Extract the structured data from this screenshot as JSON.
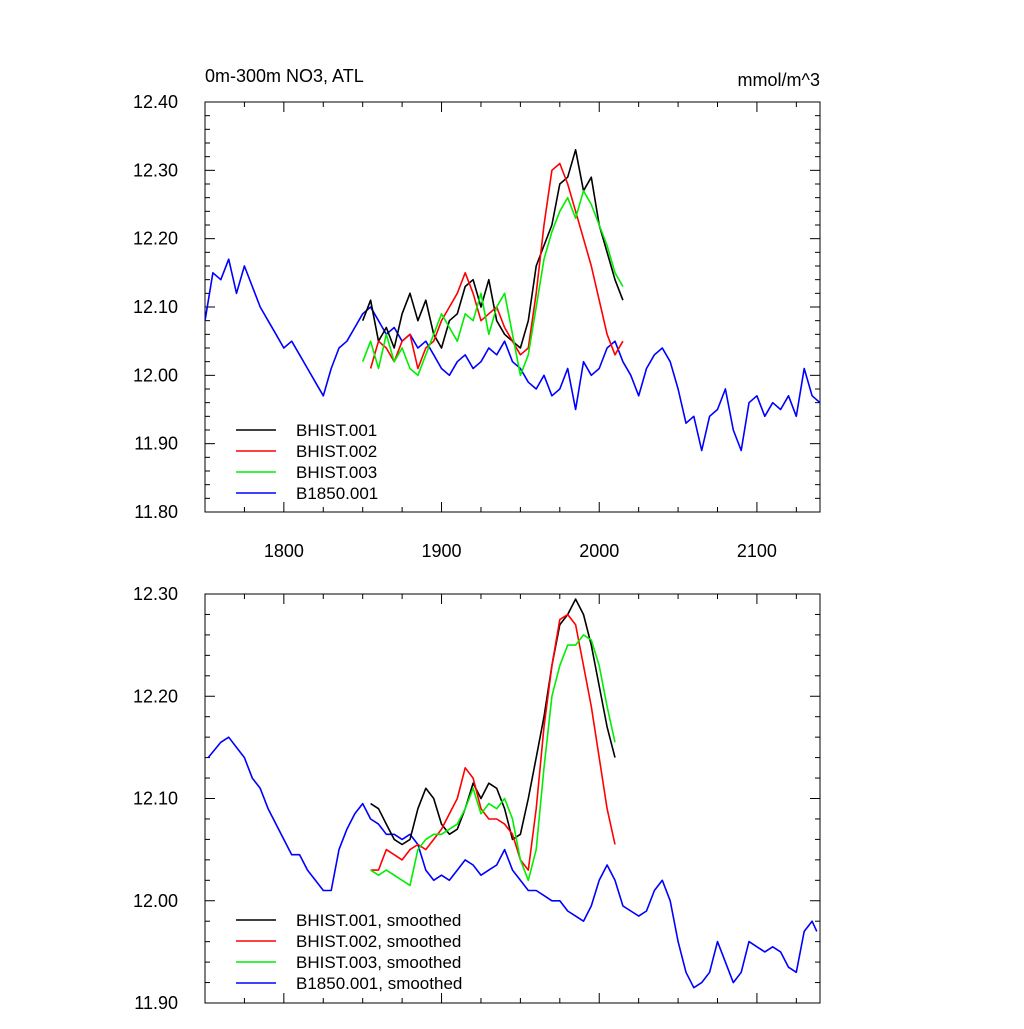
{
  "chart_data": [
    {
      "type": "line",
      "title_left": "0m-300m NO3, ATL",
      "title_right": "mmol/m^3",
      "xlabel": "",
      "ylabel": "",
      "xlim": [
        1750,
        2140
      ],
      "ylim": [
        11.8,
        12.4
      ],
      "x_ticks": [
        1800,
        1900,
        2000,
        2100
      ],
      "x_tick_labels": [
        "1800",
        "1900",
        "2000",
        "2100"
      ],
      "y_ticks": [
        11.8,
        11.9,
        12.0,
        12.1,
        12.2,
        12.3,
        12.4
      ],
      "y_tick_labels": [
        "11.80",
        "11.90",
        "12.00",
        "12.10",
        "12.20",
        "12.30",
        "12.40"
      ],
      "legend_position": "bottom-left",
      "series": [
        {
          "name": "BHIST.001",
          "color": "#000000",
          "x": [
            1850,
            1855,
            1860,
            1865,
            1870,
            1875,
            1880,
            1885,
            1890,
            1895,
            1900,
            1905,
            1910,
            1915,
            1920,
            1925,
            1930,
            1935,
            1940,
            1945,
            1950,
            1955,
            1960,
            1965,
            1970,
            1975,
            1980,
            1985,
            1990,
            1995,
            2000,
            2005,
            2010,
            2015
          ],
          "y": [
            12.08,
            12.11,
            12.05,
            12.07,
            12.04,
            12.09,
            12.12,
            12.08,
            12.11,
            12.06,
            12.04,
            12.08,
            12.09,
            12.13,
            12.14,
            12.1,
            12.14,
            12.08,
            12.06,
            12.05,
            12.04,
            12.08,
            12.16,
            12.19,
            12.22,
            12.28,
            12.29,
            12.33,
            12.27,
            12.29,
            12.22,
            12.18,
            12.14,
            12.11
          ]
        },
        {
          "name": "BHIST.002",
          "color": "#ff0000",
          "x": [
            1855,
            1860,
            1865,
            1870,
            1875,
            1880,
            1885,
            1890,
            1895,
            1900,
            1905,
            1910,
            1915,
            1920,
            1925,
            1930,
            1935,
            1940,
            1945,
            1950,
            1955,
            1960,
            1965,
            1970,
            1975,
            1980,
            1985,
            1990,
            1995,
            2000,
            2005,
            2010,
            2015
          ],
          "y": [
            12.01,
            12.05,
            12.04,
            12.02,
            12.05,
            12.06,
            12.01,
            12.04,
            12.05,
            12.08,
            12.1,
            12.12,
            12.15,
            12.12,
            12.08,
            12.09,
            12.1,
            12.07,
            12.05,
            12.03,
            12.04,
            12.12,
            12.22,
            12.3,
            12.31,
            12.28,
            12.24,
            12.2,
            12.16,
            12.11,
            12.06,
            12.03,
            12.05
          ]
        },
        {
          "name": "BHIST.003",
          "color": "#00ee00",
          "x": [
            1850,
            1855,
            1860,
            1865,
            1870,
            1875,
            1880,
            1885,
            1890,
            1895,
            1900,
            1905,
            1910,
            1915,
            1920,
            1925,
            1930,
            1935,
            1940,
            1945,
            1950,
            1955,
            1960,
            1965,
            1970,
            1975,
            1980,
            1985,
            1990,
            1995,
            2000,
            2005,
            2010,
            2015
          ],
          "y": [
            12.02,
            12.05,
            12.01,
            12.06,
            12.02,
            12.04,
            12.01,
            12.0,
            12.03,
            12.06,
            12.09,
            12.07,
            12.05,
            12.09,
            12.08,
            12.12,
            12.06,
            12.1,
            12.12,
            12.06,
            12.0,
            12.03,
            12.1,
            12.17,
            12.21,
            12.24,
            12.26,
            12.23,
            12.27,
            12.25,
            12.22,
            12.19,
            12.15,
            12.13
          ]
        },
        {
          "name": "B1850.001",
          "color": "#0000ff",
          "x": [
            1750,
            1755,
            1760,
            1765,
            1770,
            1775,
            1780,
            1785,
            1790,
            1795,
            1800,
            1805,
            1810,
            1815,
            1820,
            1825,
            1830,
            1835,
            1840,
            1845,
            1850,
            1855,
            1860,
            1865,
            1870,
            1875,
            1880,
            1885,
            1890,
            1895,
            1900,
            1905,
            1910,
            1915,
            1920,
            1925,
            1930,
            1935,
            1940,
            1945,
            1950,
            1955,
            1960,
            1965,
            1970,
            1975,
            1980,
            1985,
            1990,
            1995,
            2000,
            2005,
            2010,
            2015,
            2020,
            2025,
            2030,
            2035,
            2040,
            2045,
            2050,
            2055,
            2060,
            2065,
            2070,
            2075,
            2080,
            2085,
            2090,
            2095,
            2100,
            2105,
            2110,
            2115,
            2120,
            2125,
            2130,
            2135,
            2140
          ],
          "y": [
            12.08,
            12.15,
            12.14,
            12.17,
            12.12,
            12.16,
            12.13,
            12.1,
            12.08,
            12.06,
            12.04,
            12.05,
            12.03,
            12.01,
            11.99,
            11.97,
            12.01,
            12.04,
            12.05,
            12.07,
            12.09,
            12.1,
            12.08,
            12.06,
            12.07,
            12.05,
            12.06,
            12.04,
            12.05,
            12.03,
            12.01,
            12.0,
            12.02,
            12.03,
            12.01,
            12.02,
            12.04,
            12.03,
            12.05,
            12.02,
            12.01,
            11.99,
            11.98,
            12.0,
            11.97,
            11.98,
            12.01,
            11.95,
            12.02,
            12.0,
            12.01,
            12.04,
            12.05,
            12.02,
            12.0,
            11.97,
            12.01,
            12.03,
            12.04,
            12.02,
            11.98,
            11.93,
            11.94,
            11.89,
            11.94,
            11.95,
            11.98,
            11.92,
            11.89,
            11.96,
            11.97,
            11.94,
            11.96,
            11.95,
            11.97,
            11.94,
            12.01,
            11.97,
            11.96
          ]
        }
      ]
    },
    {
      "type": "line",
      "title_left": "",
      "title_right": "",
      "xlabel": "",
      "ylabel": "",
      "xlim": [
        1750,
        2140
      ],
      "ylim": [
        11.9,
        12.3
      ],
      "x_ticks": [
        1800,
        1900,
        2000,
        2100
      ],
      "y_ticks": [
        11.9,
        12.0,
        12.1,
        12.2,
        12.3
      ],
      "y_tick_labels": [
        "11.90",
        "12.00",
        "12.10",
        "12.20",
        "12.30"
      ],
      "legend_position": "bottom-left",
      "series": [
        {
          "name": "BHIST.001, smoothed",
          "color": "#000000",
          "x": [
            1855,
            1860,
            1865,
            1870,
            1875,
            1880,
            1885,
            1890,
            1895,
            1900,
            1905,
            1910,
            1915,
            1920,
            1925,
            1930,
            1935,
            1940,
            1945,
            1950,
            1955,
            1960,
            1965,
            1970,
            1975,
            1980,
            1985,
            1990,
            1995,
            2000,
            2005,
            2010
          ],
          "y": [
            12.095,
            12.09,
            12.075,
            12.06,
            12.055,
            12.06,
            12.09,
            12.11,
            12.1,
            12.075,
            12.065,
            12.07,
            12.09,
            12.115,
            12.1,
            12.115,
            12.11,
            12.09,
            12.06,
            12.065,
            12.1,
            12.14,
            12.18,
            12.23,
            12.27,
            12.28,
            12.295,
            12.28,
            12.25,
            12.21,
            12.17,
            12.14
          ]
        },
        {
          "name": "BHIST.002, smoothed",
          "color": "#ff0000",
          "x": [
            1855,
            1860,
            1865,
            1870,
            1875,
            1880,
            1885,
            1890,
            1895,
            1900,
            1905,
            1910,
            1915,
            1920,
            1925,
            1930,
            1935,
            1940,
            1945,
            1950,
            1955,
            1960,
            1965,
            1970,
            1975,
            1980,
            1985,
            1990,
            1995,
            2000,
            2005,
            2010
          ],
          "y": [
            12.03,
            12.03,
            12.05,
            12.045,
            12.04,
            12.05,
            12.055,
            12.05,
            12.06,
            12.07,
            12.085,
            12.1,
            12.13,
            12.12,
            12.09,
            12.08,
            12.08,
            12.075,
            12.065,
            12.04,
            12.03,
            12.09,
            12.17,
            12.23,
            12.275,
            12.28,
            12.27,
            12.23,
            12.19,
            12.14,
            12.09,
            12.055
          ]
        },
        {
          "name": "BHIST.003, smoothed",
          "color": "#00ee00",
          "x": [
            1855,
            1860,
            1865,
            1870,
            1875,
            1880,
            1885,
            1890,
            1895,
            1900,
            1905,
            1910,
            1915,
            1920,
            1925,
            1930,
            1935,
            1940,
            1945,
            1950,
            1955,
            1960,
            1965,
            1970,
            1975,
            1980,
            1985,
            1990,
            1995,
            2000,
            2005,
            2010
          ],
          "y": [
            12.03,
            12.025,
            12.03,
            12.025,
            12.02,
            12.015,
            12.05,
            12.06,
            12.065,
            12.065,
            12.07,
            12.075,
            12.09,
            12.11,
            12.085,
            12.095,
            12.09,
            12.1,
            12.08,
            12.04,
            12.02,
            12.05,
            12.13,
            12.2,
            12.23,
            12.25,
            12.25,
            12.26,
            12.255,
            12.23,
            12.19,
            12.155
          ]
        },
        {
          "name": "B1850.001, smoothed",
          "color": "#0000ff",
          "x": [
            1752,
            1760,
            1765,
            1770,
            1775,
            1780,
            1785,
            1790,
            1795,
            1800,
            1805,
            1810,
            1815,
            1820,
            1825,
            1830,
            1835,
            1840,
            1845,
            1850,
            1855,
            1860,
            1865,
            1870,
            1875,
            1880,
            1885,
            1890,
            1895,
            1900,
            1905,
            1910,
            1915,
            1920,
            1925,
            1930,
            1935,
            1940,
            1945,
            1950,
            1955,
            1960,
            1965,
            1970,
            1975,
            1980,
            1985,
            1990,
            1995,
            2000,
            2005,
            2010,
            2015,
            2020,
            2025,
            2030,
            2035,
            2040,
            2045,
            2050,
            2055,
            2060,
            2065,
            2070,
            2075,
            2080,
            2085,
            2090,
            2095,
            2100,
            2105,
            2110,
            2115,
            2120,
            2125,
            2130,
            2135,
            2138
          ],
          "y": [
            12.14,
            12.155,
            12.16,
            12.15,
            12.14,
            12.12,
            12.11,
            12.09,
            12.075,
            12.06,
            12.045,
            12.045,
            12.03,
            12.02,
            12.01,
            12.01,
            12.05,
            12.07,
            12.085,
            12.095,
            12.08,
            12.075,
            12.065,
            12.065,
            12.06,
            12.065,
            12.055,
            12.03,
            12.02,
            12.025,
            12.02,
            12.03,
            12.04,
            12.035,
            12.025,
            12.03,
            12.035,
            12.05,
            12.03,
            12.02,
            12.01,
            12.01,
            12.005,
            12.0,
            12.0,
            11.99,
            11.985,
            11.98,
            11.995,
            12.02,
            12.035,
            12.02,
            11.995,
            11.99,
            11.985,
            11.99,
            12.01,
            12.02,
            12.0,
            11.96,
            11.93,
            11.915,
            11.92,
            11.93,
            11.96,
            11.94,
            11.92,
            11.93,
            11.96,
            11.955,
            11.95,
            11.955,
            11.95,
            11.935,
            11.93,
            11.97,
            11.98,
            11.97
          ]
        }
      ]
    }
  ]
}
